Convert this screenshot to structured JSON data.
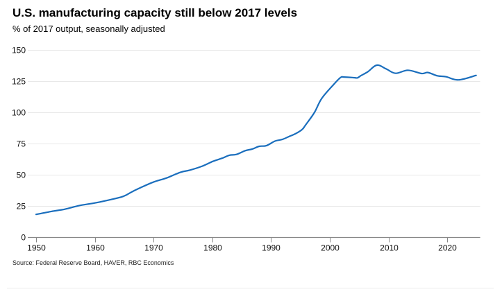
{
  "header": {
    "title": "U.S. manufacturing capacity still below 2017 levels",
    "subtitle": "% of 2017 output, seasonally adjusted"
  },
  "footer": {
    "source": "Source: Federal Reserve Board, HAVER, RBC Economics"
  },
  "colors": {
    "line": "#1a6ebd",
    "grid": "#e8e8e8",
    "axis": "#888888"
  },
  "chart_data": {
    "type": "line",
    "title": "U.S. manufacturing capacity still below 2017 levels",
    "subtitle": "% of 2017 output, seasonally adjusted",
    "xlabel": "",
    "ylabel": "",
    "xlim": [
      1949.9,
      2025.6
    ],
    "ylim": [
      0,
      150
    ],
    "xticks": [
      1950,
      1960,
      1970,
      1980,
      1990,
      2000,
      2010,
      2020
    ],
    "yticks": [
      0,
      25,
      50,
      75,
      100,
      125,
      150
    ],
    "grid": "horizontal",
    "legend": "none",
    "series": [
      {
        "name": "Manufacturing capacity",
        "x": [
          1950,
          1952.6,
          1954.9,
          1957.3,
          1960,
          1962.4,
          1964.8,
          1966.3,
          1967.5,
          1969.9,
          1972.2,
          1974.6,
          1976.2,
          1978.2,
          1980.1,
          1981.7,
          1982.9,
          1984.1,
          1985.6,
          1986.8,
          1988,
          1989.2,
          1990.7,
          1991.9,
          1993.1,
          1994.3,
          1995.3,
          1995.9,
          1997.4,
          1998.6,
          2000.6,
          2001.8,
          2002.4,
          2004.1,
          2004.7,
          2005.3,
          2006.5,
          2008.0,
          2009.6,
          2011.2,
          2013.3,
          2015.6,
          2016.7,
          2018.3,
          2019.8,
          2021.9,
          2024.9
        ],
        "values": [
          18.2,
          20.6,
          22.4,
          25.2,
          27.4,
          29.8,
          32.6,
          36.3,
          39,
          44,
          47.4,
          52,
          53.7,
          56.7,
          60.7,
          63.3,
          65.6,
          66.3,
          69.3,
          70.6,
          72.8,
          73.3,
          77,
          78.3,
          80.7,
          83.2,
          86.3,
          90,
          100,
          111,
          122,
          127.8,
          128.3,
          127.8,
          127.6,
          129.4,
          132.6,
          137.8,
          134.8,
          131.3,
          133.7,
          131.1,
          131.9,
          129.3,
          128.5,
          126,
          129.6
        ]
      }
    ]
  }
}
